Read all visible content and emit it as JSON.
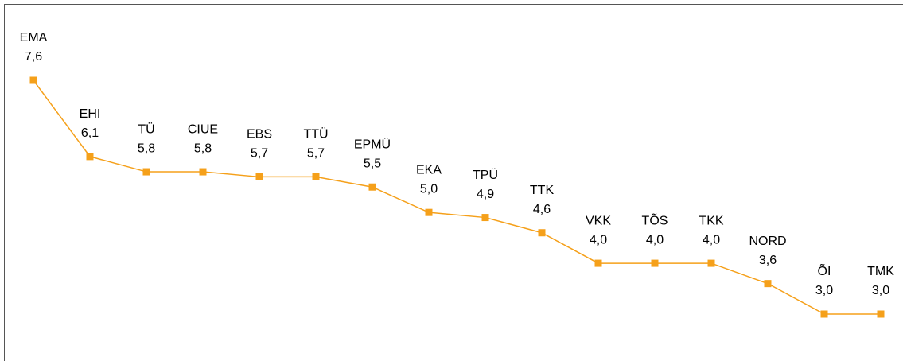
{
  "chart_data": {
    "type": "line",
    "categories": [
      "EMA",
      "EHI",
      "TÜ",
      "CIUE",
      "EBS",
      "TTÜ",
      "EPMÜ",
      "EKA",
      "TPÜ",
      "TTK",
      "VKK",
      "TÕS",
      "TKK",
      "NORD",
      "ÕI",
      "TMK"
    ],
    "values": [
      7.6,
      6.1,
      5.8,
      5.8,
      5.7,
      5.7,
      5.5,
      5.0,
      4.9,
      4.6,
      4.0,
      4.0,
      4.0,
      3.6,
      3.0,
      3.0
    ],
    "value_labels": [
      "7,6",
      "6,1",
      "5,8",
      "5,8",
      "5,7",
      "5,7",
      "5,5",
      "5,0",
      "4,9",
      "4,6",
      "4,0",
      "4,0",
      "4,0",
      "3,6",
      "3,0",
      "3,0"
    ],
    "color": "#f5a01a"
  }
}
